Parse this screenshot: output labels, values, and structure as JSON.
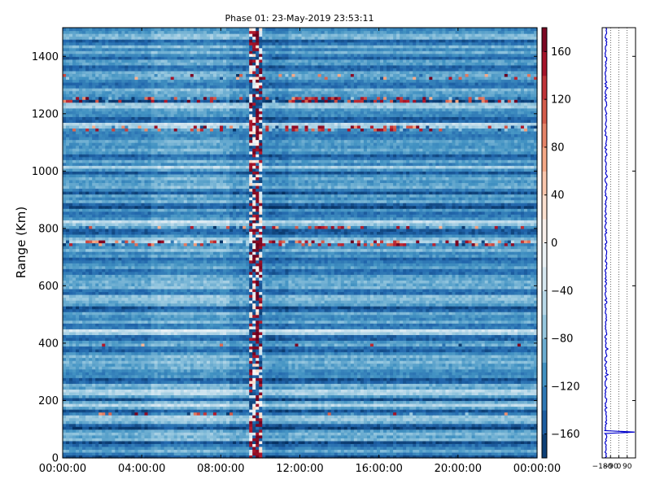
{
  "chart_data": [
    {
      "type": "heatmap",
      "title": "Phase 01: 23-May-2019 23:53:11",
      "ylabel": "Range (Km)",
      "xlabel": "",
      "x_tick_labels": [
        "00:00:00",
        "04:00:00",
        "08:00:00",
        "12:00:00",
        "16:00:00",
        "20:00:00",
        "00:00:00"
      ],
      "x_tick_hours": [
        0,
        4,
        8,
        12,
        16,
        20,
        24
      ],
      "xlim_hours": [
        0,
        24
      ],
      "ylim": [
        0,
        1500
      ],
      "y_ticks": [
        0,
        200,
        400,
        600,
        800,
        1000,
        1200,
        1400
      ],
      "colorbar": {
        "range": [
          -180,
          180
        ],
        "ticks": [
          -160,
          -120,
          -80,
          -40,
          0,
          40,
          80,
          120,
          160
        ],
        "colormap": "RdBu_r"
      },
      "baseline_phase": -100,
      "dark_band_ranges_km": [
        10,
        50,
        110,
        160,
        200,
        270,
        380,
        420,
        460,
        520,
        580,
        650,
        690,
        730,
        790,
        850,
        880,
        930,
        1000,
        1050,
        1120,
        1180,
        1250,
        1300,
        1360,
        1400,
        1450
      ],
      "light_band_ranges_km": [
        140,
        190,
        230,
        440,
        560,
        730,
        760,
        820,
        1010,
        1160,
        1230
      ],
      "noisy_rows_km": [
        155,
        395,
        750,
        805,
        1150,
        1250,
        1330
      ],
      "strong_noise_rows_km": [
        750,
        805,
        1150,
        1250
      ],
      "interference_hours": [
        9.45,
        10.15
      ],
      "interference_core_hours": [
        9.75,
        9.95
      ]
    },
    {
      "type": "line",
      "xlim": [
        -180,
        180
      ],
      "x_tick_labels": [
        "-180",
        "-90",
        "0",
        "90"
      ],
      "x_ticks": [
        -180,
        -90,
        0,
        90
      ],
      "ylim": [
        0,
        1500
      ],
      "series_color": "#0000cc",
      "profile_center": -140,
      "vertical_grid_at": [
        -90,
        0,
        90
      ],
      "notable_points": [
        {
          "range_km": 90,
          "value": 170
        },
        {
          "range_km": 1290,
          "value": -120
        }
      ]
    }
  ]
}
